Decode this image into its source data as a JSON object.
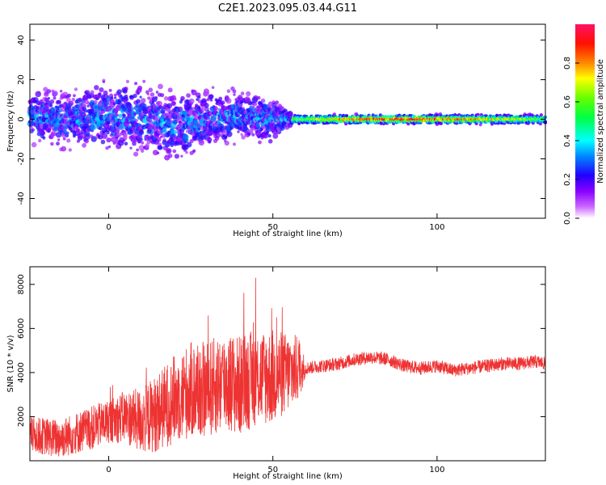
{
  "title": "C2E1.2023.095.03.44.G11",
  "chart_data": [
    {
      "type": "heatmap",
      "title": "C2E1.2023.095.03.44.G11",
      "xlabel": "Height of straight line (km)",
      "ylabel": "Frequency (Hz)",
      "xlim": [
        -24,
        133
      ],
      "ylim": [
        -50,
        48
      ],
      "xticks": [
        0,
        50,
        100
      ],
      "yticks": [
        -40,
        -20,
        0,
        20,
        40
      ],
      "colorbar": {
        "label": "Normalized spectral amplitude",
        "range": [
          0.0,
          1.0
        ],
        "ticks": [
          0.0,
          0.2,
          0.4,
          0.6,
          0.8
        ],
        "colormap": "gist_rainbow_r"
      },
      "description_points": {
        "x": [
          -24,
          -10,
          0,
          10,
          20,
          30,
          40,
          50,
          56,
          70,
          80,
          90,
          100,
          110,
          120,
          133
        ],
        "center_freq": [
          1,
          0,
          2,
          0,
          -3,
          0,
          2,
          0,
          0,
          0,
          0,
          0,
          0,
          0,
          0,
          0
        ],
        "spread_hz": [
          18,
          18,
          22,
          22,
          22,
          18,
          15,
          15,
          3,
          3,
          3,
          3,
          3,
          3,
          3,
          3
        ],
        "peak_amplitude": [
          0.4,
          0.4,
          0.4,
          0.4,
          0.4,
          0.45,
          0.45,
          0.45,
          0.55,
          0.75,
          0.88,
          0.9,
          0.88,
          0.8,
          0.7,
          0.55
        ]
      }
    },
    {
      "type": "line",
      "xlabel": "Height of straight line (km)",
      "ylabel": "SNR (10 * v/v)",
      "xlim": [
        -24,
        133
      ],
      "ylim": [
        0,
        8800
      ],
      "xticks": [
        0,
        50,
        100
      ],
      "yticks": [
        2000,
        4000,
        6000,
        8000
      ],
      "line_color": "#ee3333",
      "x": [
        -24,
        -15,
        -5,
        0,
        5,
        10,
        15,
        20,
        25,
        30,
        35,
        40,
        45,
        50,
        55,
        58,
        60,
        65,
        70,
        75,
        80,
        85,
        90,
        95,
        100,
        105,
        110,
        115,
        120,
        125,
        130,
        133
      ],
      "y": [
        1200,
        1000,
        1500,
        1800,
        2000,
        1800,
        2200,
        2800,
        3200,
        3200,
        3600,
        3400,
        3800,
        3800,
        4000,
        4200,
        4200,
        4300,
        4400,
        4600,
        4700,
        4600,
        4300,
        4200,
        4300,
        4100,
        4200,
        4300,
        4400,
        4400,
        4500,
        4400
      ],
      "spread": [
        800,
        900,
        1000,
        1000,
        1200,
        1500,
        1800,
        2000,
        2200,
        2200,
        2300,
        2300,
        2200,
        2200,
        1800,
        1500,
        300,
        300,
        300,
        300,
        300,
        300,
        300,
        300,
        300,
        300,
        300,
        300,
        300,
        300,
        300,
        300
      ]
    }
  ]
}
